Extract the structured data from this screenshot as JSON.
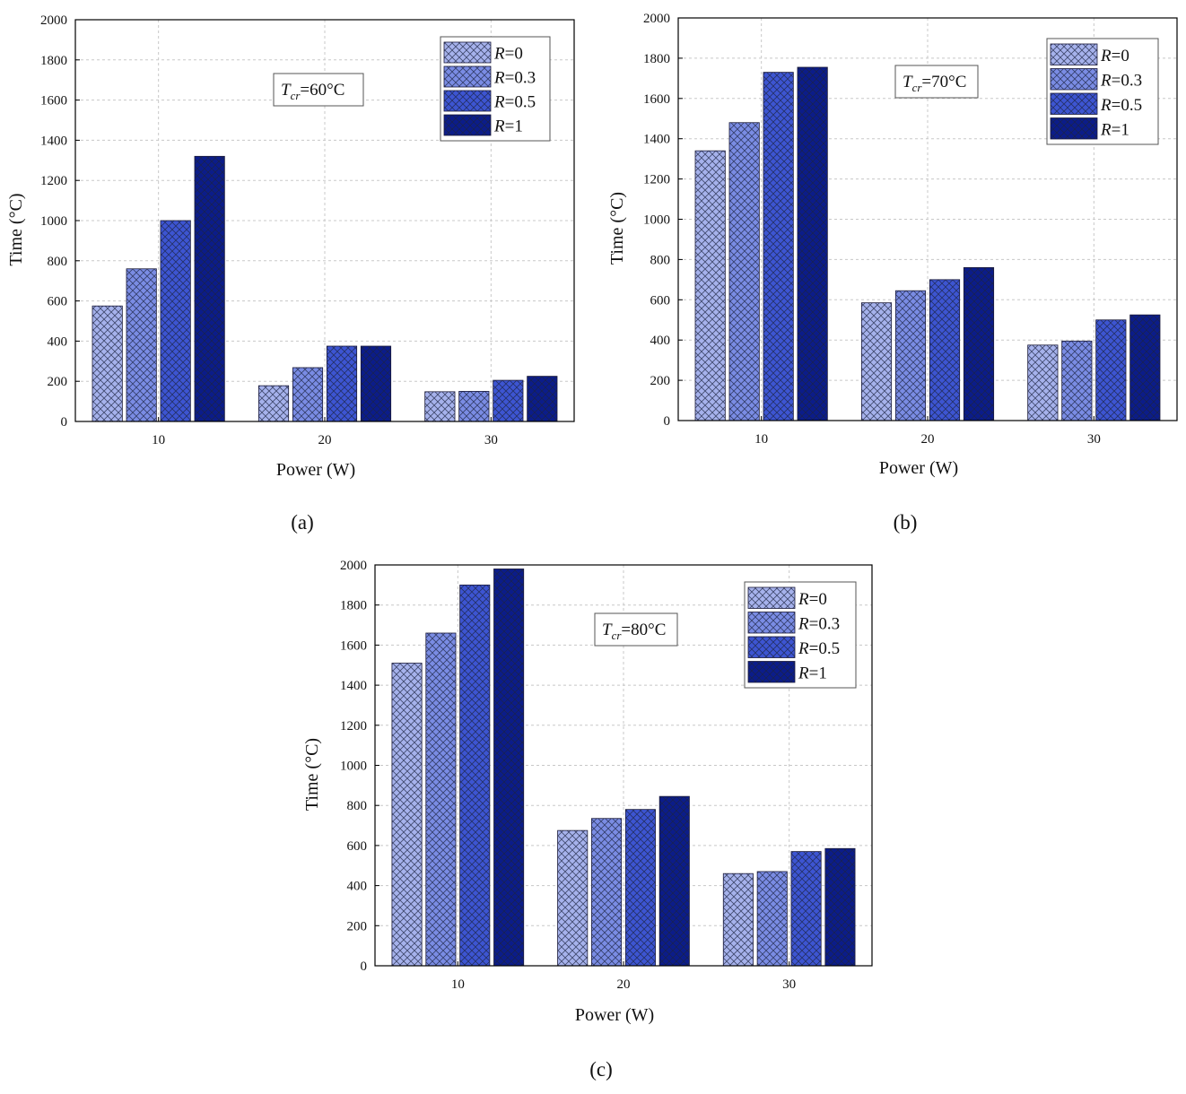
{
  "chart_data": [
    {
      "type": "bar",
      "panel_label": "(a)",
      "annotation_var": "T",
      "annotation_sub": "cr",
      "annotation_val": "=60°C",
      "xlabel": "Power (W)",
      "ylabel": "Time (°C)",
      "categories": [
        "10",
        "20",
        "30"
      ],
      "ylim": [
        0,
        2000
      ],
      "yticks": [
        "0",
        "200",
        "400",
        "600",
        "800",
        "1000",
        "1200",
        "1400",
        "1600",
        "1800",
        "2000"
      ],
      "series": [
        {
          "name": "R=0",
          "var": "R",
          "val": "=0",
          "values": [
            575,
            178,
            148
          ]
        },
        {
          "name": "R=0.3",
          "var": "R",
          "val": "=0.3",
          "values": [
            760,
            268,
            150
          ]
        },
        {
          "name": "R=0.5",
          "var": "R",
          "val": "=0.5",
          "values": [
            1000,
            375,
            205
          ]
        },
        {
          "name": "R=1",
          "var": "R",
          "val": "=1",
          "values": [
            1320,
            375,
            225
          ]
        }
      ],
      "legend": "top-right"
    },
    {
      "type": "bar",
      "panel_label": "(b)",
      "annotation_var": "T",
      "annotation_sub": "cr",
      "annotation_val": "=70°C",
      "xlabel": "Power (W)",
      "ylabel": "Time (°C)",
      "categories": [
        "10",
        "20",
        "30"
      ],
      "ylim": [
        0,
        2000
      ],
      "yticks": [
        "0",
        "200",
        "400",
        "600",
        "800",
        "1000",
        "1200",
        "1400",
        "1600",
        "1800",
        "2000"
      ],
      "series": [
        {
          "name": "R=0",
          "var": "R",
          "val": "=0",
          "values": [
            1340,
            585,
            375
          ]
        },
        {
          "name": "R=0.3",
          "var": "R",
          "val": "=0.3",
          "values": [
            1480,
            645,
            395
          ]
        },
        {
          "name": "R=0.5",
          "var": "R",
          "val": "=0.5",
          "values": [
            1730,
            700,
            500
          ]
        },
        {
          "name": "R=1",
          "var": "R",
          "val": "=1",
          "values": [
            1755,
            760,
            525
          ]
        }
      ],
      "legend": "top-right"
    },
    {
      "type": "bar",
      "panel_label": "(c)",
      "annotation_var": "T",
      "annotation_sub": "cr",
      "annotation_val": "=80°C",
      "xlabel": "Power (W)",
      "ylabel": "Time (°C)",
      "categories": [
        "10",
        "20",
        "30"
      ],
      "ylim": [
        0,
        2000
      ],
      "yticks": [
        "0",
        "200",
        "400",
        "600",
        "800",
        "1000",
        "1200",
        "1400",
        "1600",
        "1800",
        "2000"
      ],
      "series": [
        {
          "name": "R=0",
          "var": "R",
          "val": "=0",
          "values": [
            1510,
            675,
            460
          ]
        },
        {
          "name": "R=0.3",
          "var": "R",
          "val": "=0.3",
          "values": [
            1660,
            735,
            470
          ]
        },
        {
          "name": "R=0.5",
          "var": "R",
          "val": "=0.5",
          "values": [
            1900,
            780,
            570
          ]
        },
        {
          "name": "R=1",
          "var": "R",
          "val": "=1",
          "values": [
            1980,
            845,
            585
          ]
        }
      ],
      "legend": "top-right"
    }
  ],
  "colors": {
    "series_fill": [
      "#a6b2ec",
      "#7a8ce4",
      "#3d55d2",
      "#0b1c8a"
    ],
    "hatch": "#1a2240",
    "grid": "#c8c8c8",
    "axis": "#000000"
  }
}
